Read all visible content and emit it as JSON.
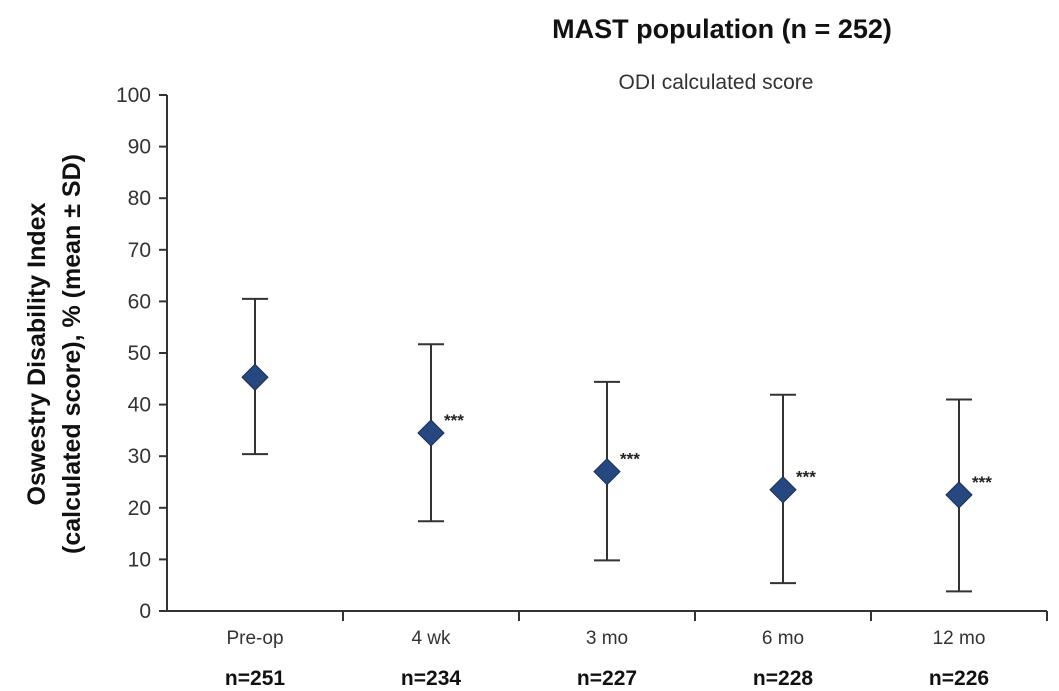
{
  "chart_data": {
    "type": "scatter",
    "title": "MAST population (n = 252)",
    "subtitle": "ODI calculated score",
    "ylabel_line1": "Oswestry Disability Index",
    "ylabel_line2": "(calculated score), % (mean ± SD)",
    "xlabel": "",
    "ylim": [
      0,
      100
    ],
    "yticks": [
      "0",
      "10",
      "20",
      "30",
      "40",
      "50",
      "60",
      "70",
      "80",
      "90",
      "100"
    ],
    "categories": [
      "Pre-op",
      "4 wk",
      "3 mo",
      "6 mo",
      "12 mo"
    ],
    "n_labels": [
      "n=251",
      "n=234",
      "n=227",
      "n=228",
      "n=226"
    ],
    "series": [
      {
        "values": [
          45.3,
          34.5,
          27.0,
          23.5,
          22.5
        ],
        "upper": [
          60.5,
          51.7,
          44.4,
          41.9,
          41.0
        ],
        "lower": [
          30.4,
          17.4,
          9.8,
          5.4,
          3.8
        ],
        "annotations": [
          "",
          "***",
          "***",
          "***",
          "***"
        ]
      }
    ],
    "marker": "diamond",
    "marker_color": "#26477f",
    "errorbar_color": "#333333",
    "grid": false
  }
}
